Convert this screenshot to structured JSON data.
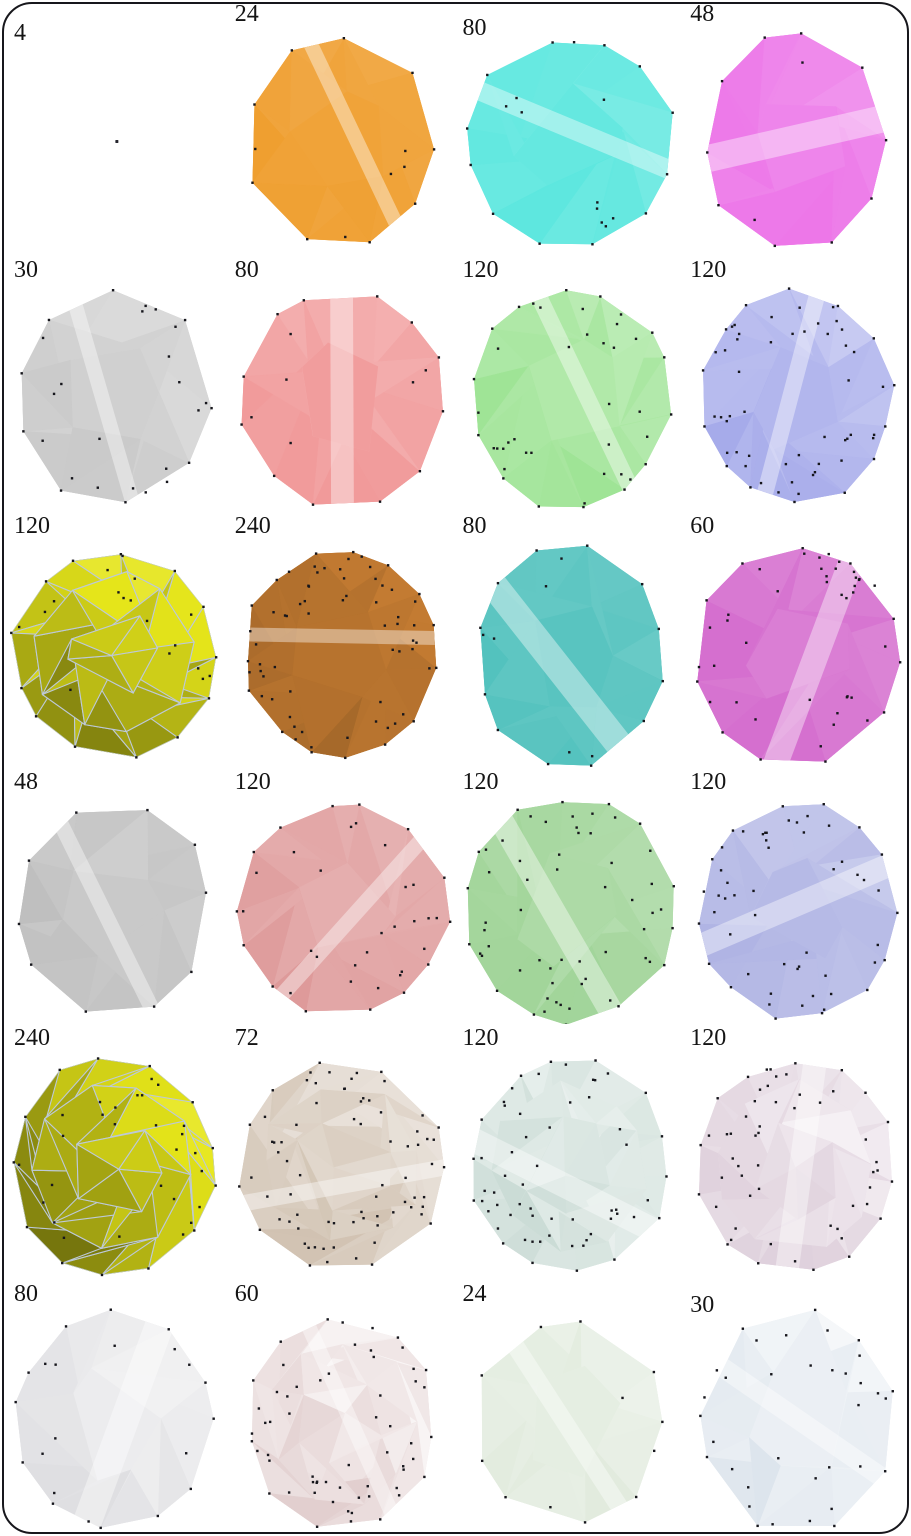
{
  "background": "#ffffff",
  "frame_color": "#17171c",
  "dot_color": "#16161c",
  "mesh_edge_color": "#bdc9d8",
  "columns": 4,
  "rows": 6,
  "cells": [
    {
      "label": "4",
      "style": "point",
      "color": "#26262e",
      "dots": 1
    },
    {
      "label": "24",
      "style": "solid",
      "color": "#f0a43c",
      "dots": 14
    },
    {
      "label": "80",
      "style": "solid",
      "color": "#69e9e1",
      "dots": 22
    },
    {
      "label": "48",
      "style": "solid",
      "color": "#ee82ea",
      "dots": 12
    },
    {
      "label": "30",
      "style": "solid",
      "color": "#d2d2d2",
      "dots": 28
    },
    {
      "label": "80",
      "style": "solid",
      "color": "#f2a4a4",
      "dots": 18
    },
    {
      "label": "120",
      "style": "solid",
      "color": "#aae7a2",
      "dots": 42
    },
    {
      "label": "120",
      "style": "solid",
      "color": "#b6baee",
      "dots": 60
    },
    {
      "label": "120",
      "style": "mesh",
      "color": "#c0c016",
      "dots": 30
    },
    {
      "label": "240",
      "style": "solid",
      "color": "#b5722e",
      "dots": 70
    },
    {
      "label": "80",
      "style": "solid",
      "color": "#5ec6c2",
      "dots": 18
    },
    {
      "label": "60",
      "style": "solid",
      "color": "#d879d2",
      "dots": 48
    },
    {
      "label": "48",
      "style": "solid",
      "color": "#c7c7c7",
      "dots": 10
    },
    {
      "label": "120",
      "style": "solid",
      "color": "#e3a8a8",
      "dots": 38
    },
    {
      "label": "120",
      "style": "solid",
      "color": "#abd9a4",
      "dots": 60
    },
    {
      "label": "120",
      "style": "solid",
      "color": "#b9bde7",
      "dots": 55
    },
    {
      "label": "240",
      "style": "mesh",
      "color": "#b8b814",
      "dots": 40
    },
    {
      "label": "72",
      "style": "facet",
      "color": "#ddd2c6",
      "dots": 75
    },
    {
      "label": "120",
      "style": "facet",
      "color": "#dde8e4",
      "dots": 60
    },
    {
      "label": "120",
      "style": "facet",
      "color": "#e9dfe7",
      "dots": 55
    },
    {
      "label": "80",
      "style": "solid",
      "color": "#e9e9eb",
      "dots": 22
    },
    {
      "label": "60",
      "style": "facet",
      "color": "#eee3e3",
      "dots": 60
    },
    {
      "label": "24",
      "style": "solid",
      "color": "#e7efe4",
      "dots": 12
    },
    {
      "label": "30",
      "style": "solid",
      "color": "#e9eef3",
      "dots": 35
    }
  ]
}
